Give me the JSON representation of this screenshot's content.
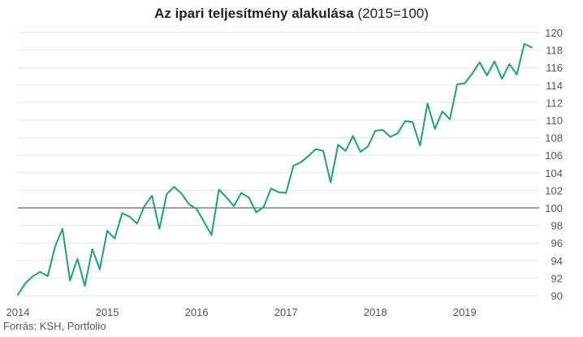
{
  "chart_data": {
    "type": "line",
    "title": "Az ipari teljesítmény alakulása",
    "title_suffix": "(2015=100)",
    "xlabel": "",
    "ylabel": "",
    "ylim": [
      90,
      120
    ],
    "yticks": [
      90,
      92,
      94,
      96,
      98,
      100,
      102,
      104,
      106,
      108,
      110,
      112,
      114,
      116,
      118,
      120
    ],
    "y_axis_position": "right",
    "reference_line": 100,
    "grid": true,
    "xlim": [
      2014.0,
      2019.833
    ],
    "xticks": [
      2014,
      2015,
      2016,
      2017,
      2018,
      2019
    ],
    "line_color": "#1aa37a",
    "x_start": 2014.0,
    "x_step_months": 1,
    "series": [
      {
        "name": "",
        "values": [
          90.1,
          91.4,
          92.2,
          92.7,
          92.2,
          95.6,
          97.6,
          91.7,
          94.2,
          91.1,
          95.3,
          93.0,
          97.4,
          96.5,
          99.4,
          99.0,
          98.2,
          100.2,
          101.4,
          97.6,
          101.6,
          102.4,
          101.6,
          100.4,
          99.9,
          98.4,
          96.9,
          102.1,
          101.2,
          100.2,
          101.7,
          101.2,
          99.5,
          100.1,
          102.2,
          101.8,
          101.7,
          104.8,
          105.2,
          105.9,
          106.7,
          106.5,
          102.9,
          107.2,
          106.5,
          108.2,
          106.4,
          107.0,
          108.8,
          108.9,
          108.1,
          108.5,
          109.9,
          109.8,
          107.1,
          111.9,
          109.0,
          111.0,
          110.1,
          114.1,
          114.2,
          115.3,
          116.6,
          115.1,
          116.7,
          114.7,
          116.4,
          115.2,
          118.7,
          118.3
        ]
      }
    ]
  },
  "source": "Forrás: KSH, Portfolio"
}
